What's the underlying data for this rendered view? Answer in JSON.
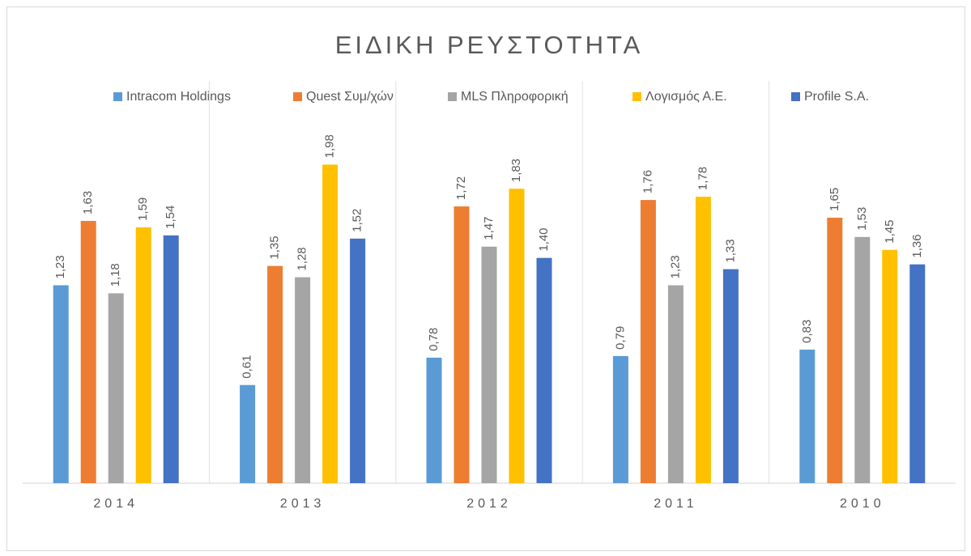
{
  "chart_data": {
    "type": "bar",
    "title": "ΕΙΔΙΚΗ ΡΕΥΣΤΟΤΗΤΑ",
    "categories": [
      "2014",
      "2013",
      "2012",
      "2011",
      "2010"
    ],
    "series": [
      {
        "name": "Intracom Holdings",
        "color": "#5b9bd5",
        "values": [
          1.23,
          0.61,
          0.78,
          0.79,
          0.83
        ],
        "value_labels": [
          "1,23",
          "0,61",
          "0,78",
          "0,79",
          "0,83"
        ]
      },
      {
        "name": "Quest Συμ/χών",
        "color": "#ed7d31",
        "values": [
          1.63,
          1.35,
          1.72,
          1.76,
          1.65
        ],
        "value_labels": [
          "1,63",
          "1,35",
          "1,72",
          "1,76",
          "1,65"
        ]
      },
      {
        "name": "MLS Πληροφορική",
        "color": "#a5a5a5",
        "values": [
          1.18,
          1.28,
          1.47,
          1.23,
          1.53
        ],
        "value_labels": [
          "1,18",
          "1,28",
          "1,47",
          "1,23",
          "1,53"
        ]
      },
      {
        "name": "Λογισμός Α.Ε.",
        "color": "#ffc000",
        "values": [
          1.59,
          1.98,
          1.83,
          1.78,
          1.45
        ],
        "value_labels": [
          "1,59",
          "1,98",
          "1,83",
          "1,78",
          "1,45"
        ]
      },
      {
        "name": "Profile S.A.",
        "color": "#4472c4",
        "values": [
          1.54,
          1.52,
          1.4,
          1.33,
          1.36
        ],
        "value_labels": [
          "1,54",
          "1,52",
          "1,40",
          "1,33",
          "1,36"
        ]
      }
    ],
    "ylim": [
      0,
      2.5
    ],
    "legend": "top"
  }
}
